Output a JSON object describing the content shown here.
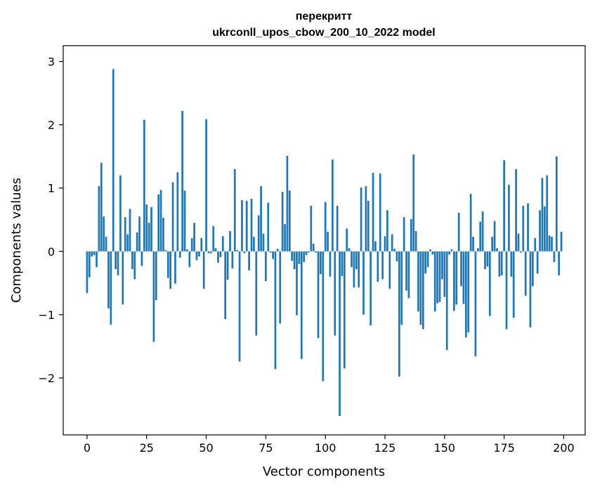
{
  "chart_data": {
    "type": "bar",
    "title": "перекритт",
    "subtitle": "ukrconll_upos_cbow_200_10_2022 model",
    "xlabel": "Vector components",
    "ylabel": "Components values",
    "xlim": [
      -10,
      209
    ],
    "ylim": [
      -2.9,
      3.25
    ],
    "xticks": [
      0,
      25,
      50,
      75,
      100,
      125,
      150,
      175,
      200
    ],
    "yticks": [
      -2,
      -1,
      0,
      1,
      2,
      3
    ],
    "xtick_labels": [
      "0",
      "25",
      "50",
      "75",
      "100",
      "125",
      "150",
      "175",
      "200"
    ],
    "ytick_labels": [
      "−2",
      "−1",
      "0",
      "1",
      "2",
      "3"
    ],
    "grid": false,
    "bar_color": "#1f77b4",
    "x": [
      0,
      1,
      2,
      3,
      4,
      5,
      6,
      7,
      8,
      9,
      10,
      11,
      12,
      13,
      14,
      15,
      16,
      17,
      18,
      19,
      20,
      21,
      22,
      23,
      24,
      25,
      26,
      27,
      28,
      29,
      30,
      31,
      32,
      33,
      34,
      35,
      36,
      37,
      38,
      39,
      40,
      41,
      42,
      43,
      44,
      45,
      46,
      47,
      48,
      49,
      50,
      51,
      52,
      53,
      54,
      55,
      56,
      57,
      58,
      59,
      60,
      61,
      62,
      63,
      64,
      65,
      66,
      67,
      68,
      69,
      70,
      71,
      72,
      73,
      74,
      75,
      76,
      77,
      78,
      79,
      80,
      81,
      82,
      83,
      84,
      85,
      86,
      87,
      88,
      89,
      90,
      91,
      92,
      93,
      94,
      95,
      96,
      97,
      98,
      99,
      100,
      101,
      102,
      103,
      104,
      105,
      106,
      107,
      108,
      109,
      110,
      111,
      112,
      113,
      114,
      115,
      116,
      117,
      118,
      119,
      120,
      121,
      122,
      123,
      124,
      125,
      126,
      127,
      128,
      129,
      130,
      131,
      132,
      133,
      134,
      135,
      136,
      137,
      138,
      139,
      140,
      141,
      142,
      143,
      144,
      145,
      146,
      147,
      148,
      149,
      150,
      151,
      152,
      153,
      154,
      155,
      156,
      157,
      158,
      159,
      160,
      161,
      162,
      163,
      164,
      165,
      166,
      167,
      168,
      169,
      170,
      171,
      172,
      173,
      174,
      175,
      176,
      177,
      178,
      179,
      180,
      181,
      182,
      183,
      184,
      185,
      186,
      187,
      188,
      189,
      190,
      191,
      192,
      193,
      194,
      195,
      196,
      197,
      198,
      199
    ],
    "values": [
      -0.66,
      -0.41,
      -0.08,
      -0.06,
      -0.25,
      1.03,
      1.4,
      0.55,
      0.23,
      -0.9,
      -1.16,
      2.88,
      -0.28,
      -0.38,
      1.2,
      -0.84,
      0.54,
      0.27,
      0.67,
      -0.28,
      -0.44,
      0.3,
      0.55,
      -0.23,
      2.08,
      0.74,
      0.45,
      0.7,
      -1.43,
      -0.77,
      0.9,
      0.97,
      0.53,
      0.02,
      -0.42,
      -0.59,
      1.09,
      -0.51,
      1.25,
      -0.1,
      2.22,
      0.96,
      0.03,
      -0.25,
      0.21,
      0.45,
      -0.14,
      -0.08,
      0.21,
      -0.59,
      2.09,
      -0.03,
      -0.03,
      0.4,
      0.05,
      -0.18,
      -0.09,
      0.24,
      -1.07,
      -0.45,
      0.32,
      -0.27,
      1.3,
      0.02,
      -1.74,
      0.81,
      -0.03,
      0.8,
      -0.3,
      0.83,
      0.23,
      -1.33,
      0.57,
      1.03,
      0.28,
      -0.47,
      0.77,
      -0.02,
      -0.12,
      -1.86,
      0.04,
      -1.14,
      0.94,
      0.43,
      1.51,
      0.96,
      -0.15,
      -0.28,
      -1.01,
      -0.2,
      -1.7,
      -0.17,
      -0.06,
      -0.02,
      0.72,
      0.12,
      -0.02,
      -1.37,
      -0.36,
      -2.05,
      0.78,
      0.31,
      -0.4,
      1.45,
      -1.33,
      0.72,
      -2.6,
      -0.39,
      -1.85,
      0.36,
      0.05,
      -0.25,
      -0.57,
      -0.28,
      -0.57,
      1.01,
      -1.0,
      1.03,
      0.8,
      -1.17,
      1.24,
      0.16,
      -0.48,
      1.23,
      -0.44,
      0.24,
      0.65,
      -0.59,
      0.27,
      0.04,
      -0.16,
      -1.98,
      -1.16,
      0.54,
      -0.62,
      -0.74,
      0.51,
      1.53,
      0.32,
      -0.95,
      -1.16,
      -1.23,
      -0.35,
      -0.25,
      0.03,
      -0.05,
      -0.95,
      -0.82,
      -0.8,
      -0.44,
      -0.72,
      -1.56,
      -0.05,
      0.03,
      -0.94,
      -0.84,
      0.61,
      -0.55,
      -0.83,
      -1.36,
      -1.28,
      0.91,
      0.23,
      -1.66,
      0.05,
      0.47,
      0.63,
      -0.28,
      -0.24,
      -1.02,
      0.23,
      0.48,
      0.05,
      -0.4,
      -0.38,
      1.44,
      -1.23,
      1.05,
      -0.4,
      -1.05,
      1.3,
      0.28,
      -0.02,
      0.72,
      -0.7,
      0.76,
      -1.2,
      -0.55,
      0.21,
      -0.35,
      0.65,
      1.16,
      0.71,
      1.2,
      0.25,
      0.23,
      -0.17,
      1.5,
      -0.38,
      0.31
    ]
  }
}
